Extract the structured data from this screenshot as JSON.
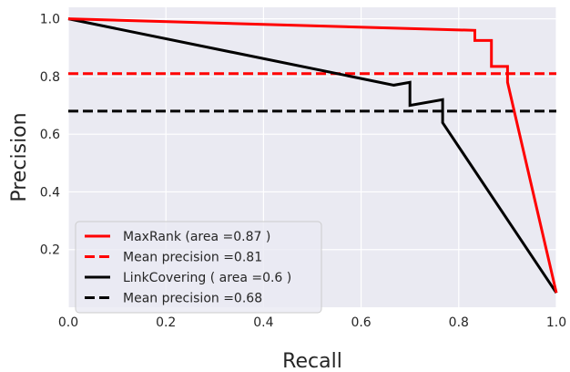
{
  "chart_data": {
    "type": "line",
    "title": "",
    "xlabel": "Recall",
    "ylabel": "Precision",
    "xlim": [
      0.0,
      1.0
    ],
    "ylim": [
      0.0,
      1.04
    ],
    "xticks": [
      "0.0",
      "0.2",
      "0.4",
      "0.6",
      "0.8",
      "1.0"
    ],
    "yticks": [
      "0.2",
      "0.4",
      "0.6",
      "0.8",
      "1.0"
    ],
    "grid": true,
    "background": "#eaeaf2",
    "legend_position": "bottom-left",
    "series": [
      {
        "name": "MaxRank (area =0.87 )",
        "color": "#ff0000",
        "style": "solid",
        "x": [
          0.0,
          0.833,
          0.833,
          0.867,
          0.867,
          0.9,
          0.9,
          1.0
        ],
        "y": [
          1.0,
          0.96,
          0.925,
          0.925,
          0.835,
          0.835,
          0.78,
          0.05
        ]
      },
      {
        "name": "Mean precision =0.81",
        "color": "#ff0000",
        "style": "dashed",
        "x": [
          0.0,
          1.0
        ],
        "y": [
          0.81,
          0.81
        ]
      },
      {
        "name": "LinkCovering ( area =0.6 )",
        "color": "#000000",
        "style": "solid",
        "x": [
          0.0,
          0.667,
          0.7,
          0.7,
          0.767,
          0.767,
          1.0
        ],
        "y": [
          1.0,
          0.77,
          0.78,
          0.7,
          0.72,
          0.64,
          0.05
        ]
      },
      {
        "name": "Mean precision =0.68",
        "color": "#000000",
        "style": "dashed",
        "x": [
          0.0,
          1.0
        ],
        "y": [
          0.68,
          0.68
        ]
      }
    ]
  }
}
